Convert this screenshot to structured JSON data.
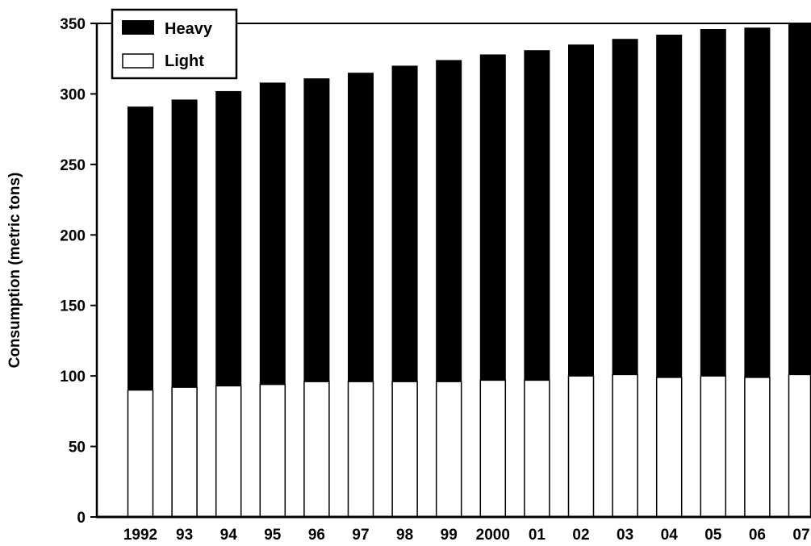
{
  "chart_data": {
    "type": "bar",
    "stacked": true,
    "title": "",
    "xlabel": "",
    "ylabel": "Consumption (metric tons)",
    "ylim": [
      0,
      350
    ],
    "yticks": [
      0,
      50,
      100,
      150,
      200,
      250,
      300,
      350
    ],
    "grid": false,
    "legend_position": "top-left",
    "categories": [
      "1992",
      "93",
      "94",
      "95",
      "96",
      "97",
      "98",
      "99",
      "2000",
      "01",
      "02",
      "03",
      "04",
      "05",
      "06",
      "07"
    ],
    "series": [
      {
        "name": "Light",
        "color": "#ffffff",
        "values": [
          90,
          92,
          93,
          94,
          96,
          96,
          96,
          96,
          97,
          97,
          100,
          101,
          99,
          100,
          99,
          101
        ]
      },
      {
        "name": "Heavy",
        "color": "#000000",
        "values": [
          201,
          204,
          209,
          214,
          215,
          219,
          224,
          228,
          231,
          234,
          235,
          238,
          243,
          246,
          248,
          252
        ]
      }
    ],
    "legend": {
      "entries": [
        "Heavy",
        "Light"
      ]
    }
  }
}
